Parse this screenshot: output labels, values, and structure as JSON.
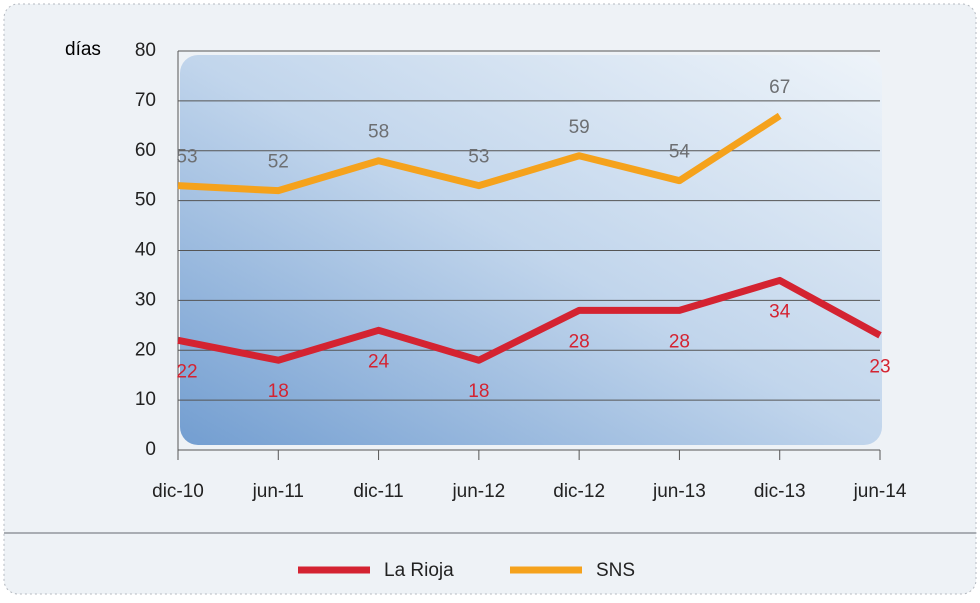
{
  "chart_data": {
    "type": "line",
    "y_label": "días",
    "categories": [
      "dic-10",
      "jun-11",
      "dic-11",
      "jun-12",
      "dic-12",
      "jun-13",
      "dic-13",
      "jun-14"
    ],
    "series": [
      {
        "name": "La Rioja",
        "color": "#d42331",
        "values": [
          22,
          18,
          24,
          18,
          28,
          28,
          34,
          23
        ]
      },
      {
        "name": "SNS",
        "color": "#f5a21c",
        "values": [
          53,
          52,
          58,
          53,
          59,
          54,
          67,
          null
        ]
      }
    ],
    "ylim": [
      0,
      80
    ],
    "yticks": [
      0,
      10,
      20,
      30,
      40,
      50,
      60,
      70,
      80
    ],
    "grid": true,
    "legend": "bottom"
  }
}
